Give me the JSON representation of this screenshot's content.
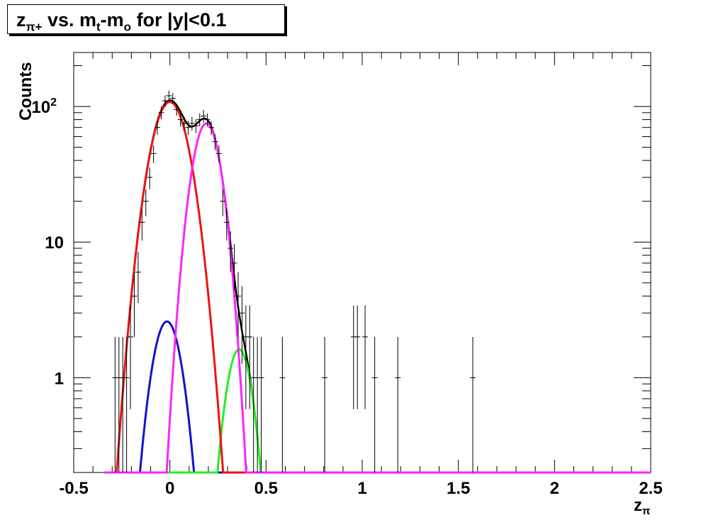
{
  "title": {
    "main": "z",
    "main_sub": "π+",
    "rest1": " vs. m",
    "rest1_sub": "t",
    "rest2": "-m",
    "rest2_sub": "o",
    "rest3": " for |y|<0.1"
  },
  "chart_data": {
    "type": "scatter",
    "xlabel": "z",
    "xlabel_sub": "π",
    "ylabel": "Counts",
    "xlim": [
      -0.5,
      2.5
    ],
    "ylim": [
      0.2,
      250
    ],
    "yscale": "log",
    "x_ticks": [
      "-0.5",
      "0",
      "0.5",
      "1",
      "1.5",
      "2",
      "2.5"
    ],
    "y_ticks": [
      {
        "value": 1,
        "label": "1",
        "sup": ""
      },
      {
        "value": 10,
        "label": "10",
        "sup": ""
      },
      {
        "value": 100,
        "label": "10",
        "sup": "2"
      }
    ],
    "grid": false,
    "colors": {
      "data": "#000000",
      "total_fit": "#000000",
      "red": "#ee1111",
      "blue": "#1111cc",
      "magenta": "#ff22ff",
      "green": "#22ee22"
    },
    "series": [
      {
        "style": "points-with-errors",
        "x": [
          -0.285,
          -0.265,
          -0.245,
          -0.225,
          -0.205,
          -0.185,
          -0.165,
          -0.145,
          -0.125,
          -0.105,
          -0.085,
          -0.065,
          -0.045,
          -0.025,
          -0.005,
          0.015,
          0.035,
          0.055,
          0.075,
          0.095,
          0.115,
          0.135,
          0.155,
          0.175,
          0.195,
          0.215,
          0.235,
          0.255,
          0.275,
          0.295,
          0.315,
          0.335,
          0.355,
          0.375,
          0.395,
          0.415,
          0.435,
          0.455,
          0.475,
          0.585,
          0.805,
          0.955,
          0.975,
          1.015,
          1.065,
          1.185,
          1.575
        ],
        "y": [
          1,
          1,
          1,
          1,
          2,
          4,
          6,
          14,
          20,
          30,
          45,
          70,
          90,
          110,
          120,
          115,
          95,
          80,
          75,
          70,
          75,
          72,
          80,
          85,
          80,
          70,
          55,
          45,
          20,
          14,
          9,
          7,
          4,
          3,
          2,
          2,
          1,
          1,
          1,
          1,
          1,
          2,
          2,
          2,
          1,
          1,
          1
        ]
      },
      {
        "name": "",
        "style": "curve",
        "color_key": "total_fit",
        "kind": "sum"
      },
      {
        "name": "",
        "style": "curve",
        "color_key": "red",
        "kind": "gauss",
        "amp": 108,
        "mean": 0.0,
        "sigma": 0.078
      },
      {
        "name": "",
        "style": "curve",
        "color_key": "magenta",
        "kind": "gauss",
        "amp": 75,
        "mean": 0.19,
        "sigma": 0.06
      },
      {
        "name": "",
        "style": "curve",
        "color_key": "blue",
        "kind": "gauss",
        "amp": 2.6,
        "mean": -0.015,
        "sigma": 0.062
      },
      {
        "name": "",
        "style": "curve",
        "color_key": "green",
        "kind": "gauss",
        "amp": 1.62,
        "mean": 0.36,
        "sigma": 0.055
      }
    ]
  }
}
